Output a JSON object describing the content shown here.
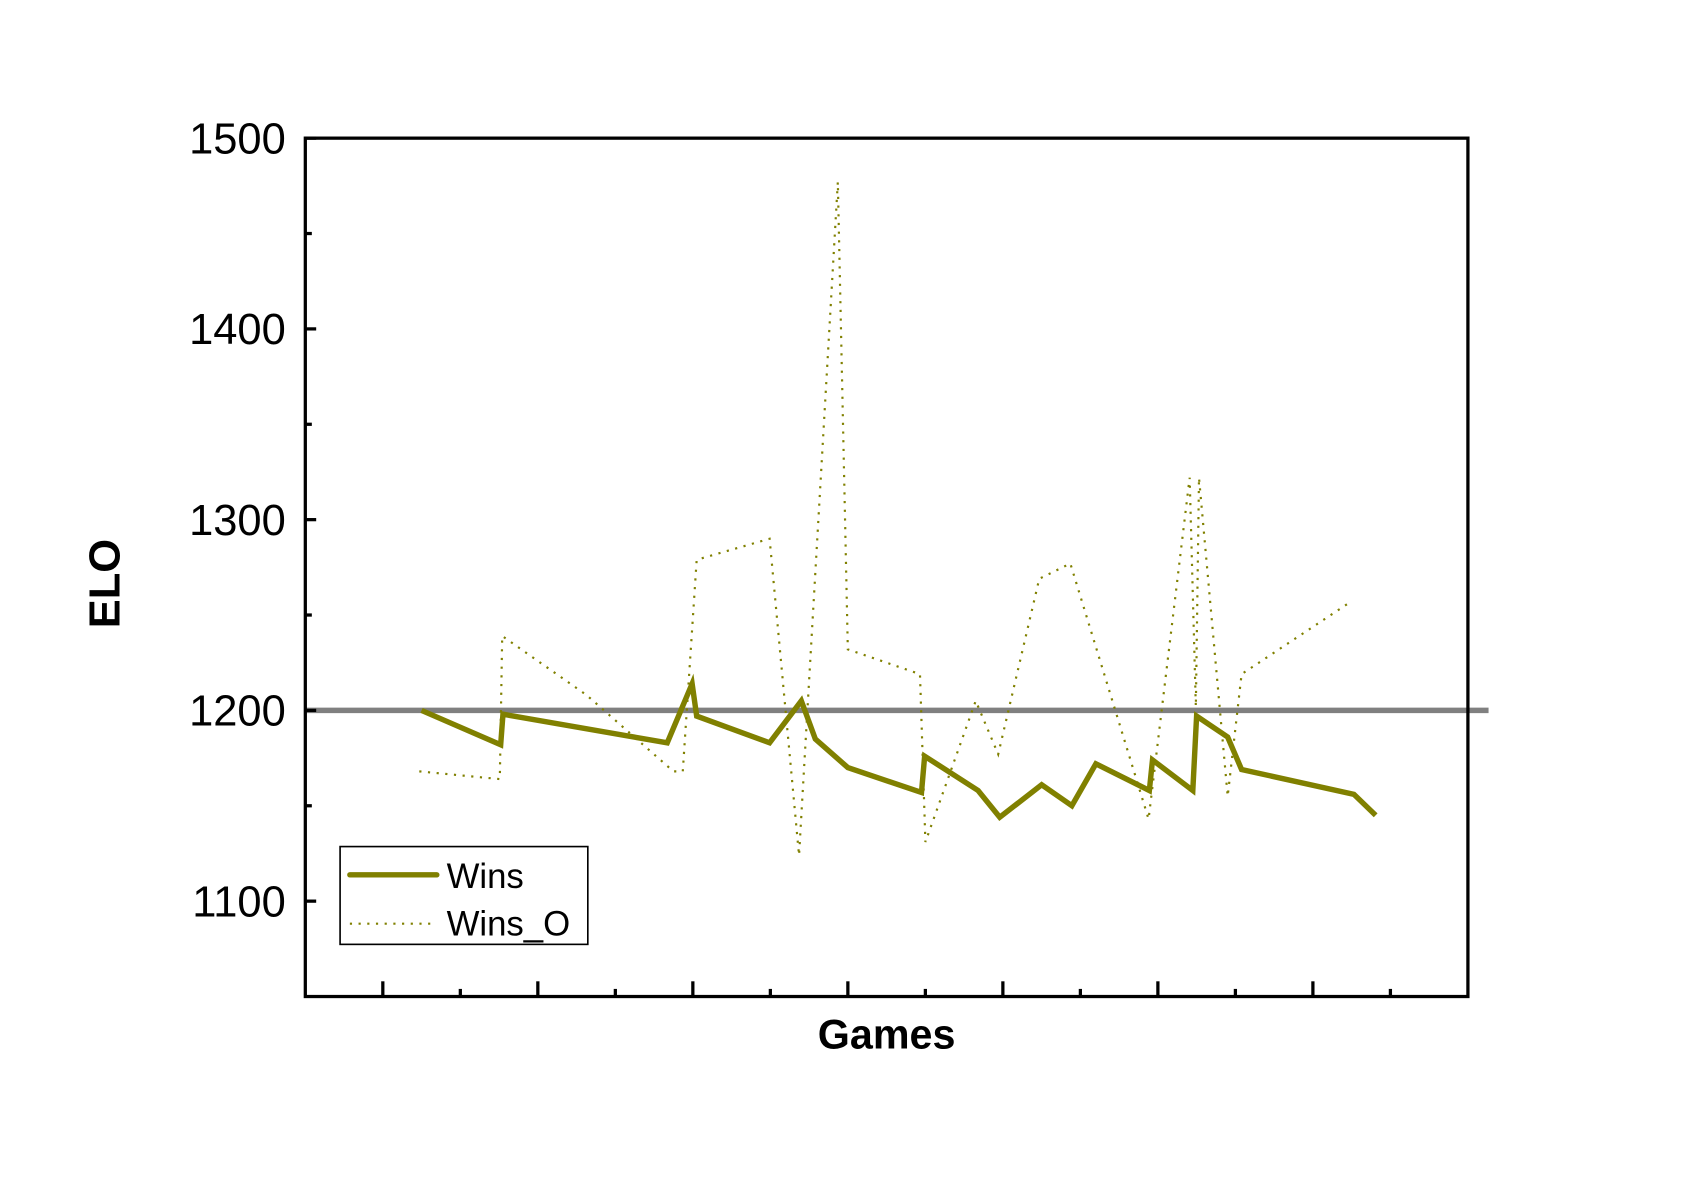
{
  "chart_data": {
    "type": "line",
    "title": "",
    "xlabel": "Games",
    "ylabel": "ELO",
    "xlim": [
      0,
      15
    ],
    "ylim": [
      1050,
      1500
    ],
    "yticks": [
      1100,
      1200,
      1300,
      1400,
      1500
    ],
    "ytick_labels": [
      "1100",
      "1200",
      "1300",
      "1400",
      "1500"
    ],
    "yminor": [
      1150,
      1250,
      1350,
      1450
    ],
    "xticks_major": [
      1,
      3,
      5,
      7,
      9,
      11,
      13
    ],
    "xticks_minor": [
      2,
      4,
      6,
      8,
      10,
      12,
      14
    ],
    "grid": false,
    "legend_position": "bottom-left",
    "reference_line": {
      "y": 1200,
      "color": "#808080"
    },
    "series": [
      {
        "name": "Wins",
        "style": "solid",
        "color": "#808000",
        "points": [
          [
            1.5,
            1200
          ],
          [
            2.52,
            1182
          ],
          [
            2.55,
            1198
          ],
          [
            4.67,
            1183
          ],
          [
            4.99,
            1214
          ],
          [
            5.05,
            1197
          ],
          [
            5.99,
            1183
          ],
          [
            6.4,
            1205
          ],
          [
            6.58,
            1185
          ],
          [
            7.0,
            1170
          ],
          [
            7.95,
            1157
          ],
          [
            7.99,
            1176
          ],
          [
            8.68,
            1158
          ],
          [
            8.96,
            1144
          ],
          [
            9.5,
            1161
          ],
          [
            9.89,
            1150
          ],
          [
            10.2,
            1172
          ],
          [
            10.89,
            1158
          ],
          [
            10.93,
            1174
          ],
          [
            11.45,
            1158
          ],
          [
            11.5,
            1197
          ],
          [
            11.9,
            1186
          ],
          [
            12.08,
            1169
          ],
          [
            13.53,
            1156
          ],
          [
            13.81,
            1145
          ]
        ]
      },
      {
        "name": "Wins_O",
        "style": "dotted",
        "color": "#808000",
        "points": [
          [
            1.47,
            1168
          ],
          [
            2.51,
            1164
          ],
          [
            2.54,
            1239
          ],
          [
            3.63,
            1208
          ],
          [
            4.75,
            1168
          ],
          [
            4.87,
            1168
          ],
          [
            5.05,
            1279
          ],
          [
            5.99,
            1290
          ],
          [
            6.37,
            1124
          ],
          [
            6.87,
            1477
          ],
          [
            7.0,
            1232
          ],
          [
            7.93,
            1219
          ],
          [
            8.0,
            1131
          ],
          [
            8.65,
            1205
          ],
          [
            8.94,
            1177
          ],
          [
            9.47,
            1269
          ],
          [
            9.87,
            1277
          ],
          [
            10.88,
            1143
          ],
          [
            11.41,
            1322
          ],
          [
            11.49,
            1202
          ],
          [
            11.53,
            1322
          ],
          [
            11.9,
            1155
          ],
          [
            12.08,
            1219
          ],
          [
            13.49,
            1257
          ]
        ]
      }
    ]
  }
}
